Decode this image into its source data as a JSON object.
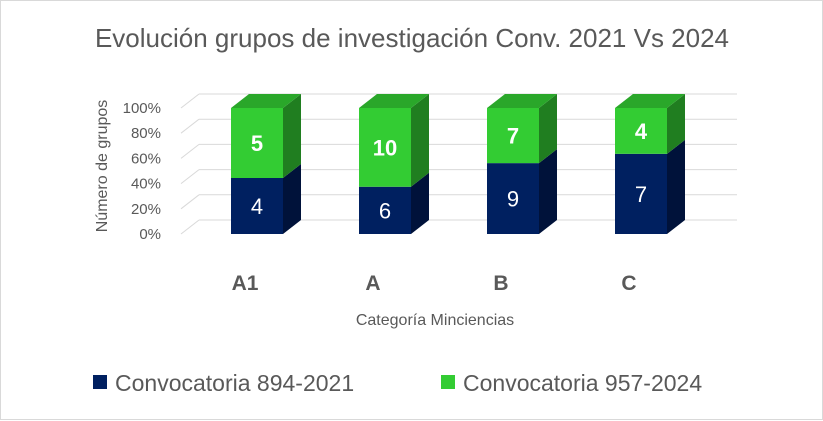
{
  "chart_data": {
    "type": "bar",
    "stacked": "percent",
    "title": "Evolución grupos de investigación Conv. 2021 Vs 2024",
    "xlabel": "Categoría Minciencias",
    "ylabel": "Número de grupos",
    "categories": [
      "A1",
      "A",
      "B",
      "C"
    ],
    "y_ticks": [
      "0%",
      "20%",
      "40%",
      "60%",
      "80%",
      "100%"
    ],
    "ylim": [
      0,
      1
    ],
    "grid": true,
    "legend_position": "bottom",
    "series": [
      {
        "name": "Convocatoria 894-2021",
        "values": [
          4,
          6,
          9,
          7
        ],
        "labels": [
          "4",
          "6",
          "9",
          "7"
        ],
        "color": "#002060"
      },
      {
        "name": "Convocatoria 957-2024",
        "values": [
          5,
          10,
          7,
          4
        ],
        "labels": [
          "5",
          "10",
          "7",
          "4"
        ],
        "color": "#33cc33"
      }
    ]
  }
}
